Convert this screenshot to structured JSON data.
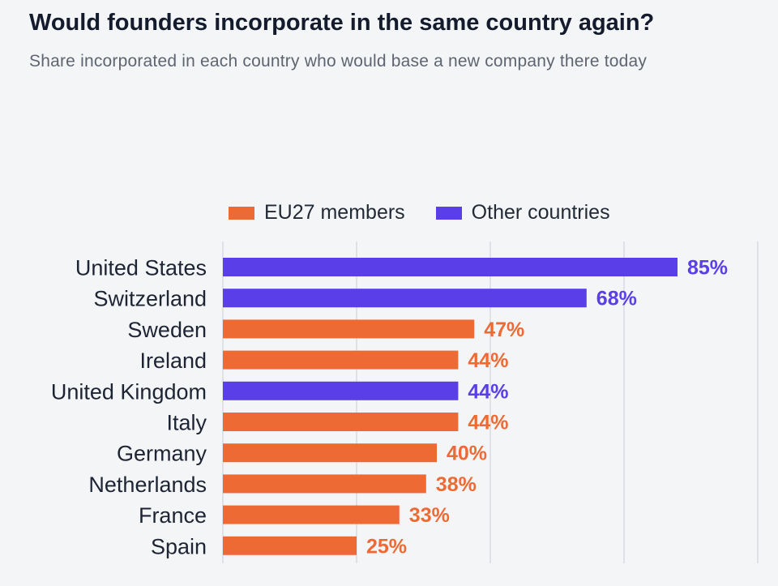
{
  "header": {
    "title": "Would founders incorporate in the same country again?",
    "subtitle": "Share incorporated in each country who would base a new company there today"
  },
  "legend": [
    {
      "label": "EU27 members",
      "color": "#ee6a35"
    },
    {
      "label": "Other countries",
      "color": "#5a3ee8"
    }
  ],
  "colors": {
    "eu": "#ee6a35",
    "other": "#5a3ee8",
    "gridline": "#d8dbe0",
    "background": "#f3f5f7"
  },
  "chart_data": {
    "type": "bar",
    "orientation": "horizontal",
    "title": "Would founders incorporate in the same country again?",
    "subtitle": "Share incorporated in each country who would base a new company there today",
    "xlim": [
      0,
      100
    ],
    "grid": true,
    "legend_position": "top",
    "categories": [
      "United States",
      "Switzerland",
      "Sweden",
      "Ireland",
      "United Kingdom",
      "Italy",
      "Germany",
      "Netherlands",
      "France",
      "Spain"
    ],
    "values": [
      85,
      68,
      47,
      44,
      44,
      44,
      40,
      38,
      33,
      25
    ],
    "value_labels": [
      "85%",
      "68%",
      "47%",
      "44%",
      "44%",
      "44%",
      "40%",
      "38%",
      "33%",
      "25%"
    ],
    "groups": [
      "Other countries",
      "Other countries",
      "EU27 members",
      "EU27 members",
      "Other countries",
      "EU27 members",
      "EU27 members",
      "EU27 members",
      "EU27 members",
      "EU27 members"
    ]
  }
}
